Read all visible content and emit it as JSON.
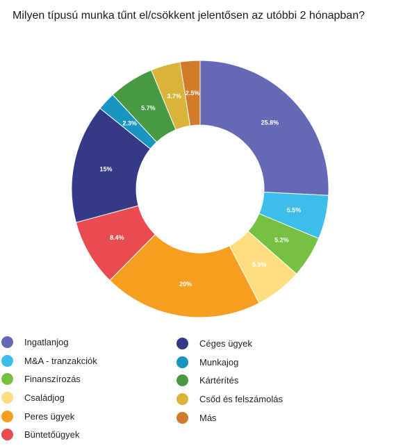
{
  "chart_data": {
    "type": "pie",
    "title": "Milyen típusú munka tűnt el/csökkent jelentősen az utóbbi 2 hónapban?",
    "slices": [
      {
        "name": "Ingatlanjog",
        "value": 25.8,
        "label": "25.8%",
        "color": "#6568b4"
      },
      {
        "name": "M&A - tranzakciók",
        "value": 5.5,
        "label": "5.5%",
        "color": "#3dbde9"
      },
      {
        "name": "Finanszírozás",
        "value": 5.2,
        "label": "5.2%",
        "color": "#76c043"
      },
      {
        "name": "Családjog",
        "value": 5.9,
        "label": "5.9%",
        "color": "#fedd7f"
      },
      {
        "name": "Peres ügyek",
        "value": 20,
        "label": "20%",
        "color": "#f69e1f"
      },
      {
        "name": "Büntetőügyek",
        "value": 8.4,
        "label": "8.4%",
        "color": "#e84c51"
      },
      {
        "name": "Céges ügyek",
        "value": 15,
        "label": "15%",
        "color": "#343a87"
      },
      {
        "name": "Munkajog",
        "value": 2.3,
        "label": "2.3%",
        "color": "#1895c0"
      },
      {
        "name": "Kártérítés",
        "value": 5.7,
        "label": "5.7%",
        "color": "#479a42"
      },
      {
        "name": "Csőd és felszámolás",
        "value": 3.7,
        "label": "3.7%",
        "color": "#d8b43a"
      },
      {
        "name": "Más",
        "value": 2.5,
        "label": "2.5%",
        "color": "#d17a2a"
      }
    ],
    "legend": {
      "left": [
        "Ingatlanjog",
        "M&A - tranzakciók",
        "Finanszírozás",
        "Családjog",
        "Peres ügyek",
        "Büntetőügyek"
      ],
      "right": [
        "Céges ügyek",
        "Munkajog",
        "Kártérítés",
        "Csőd és felszámolás",
        "Más"
      ]
    }
  }
}
